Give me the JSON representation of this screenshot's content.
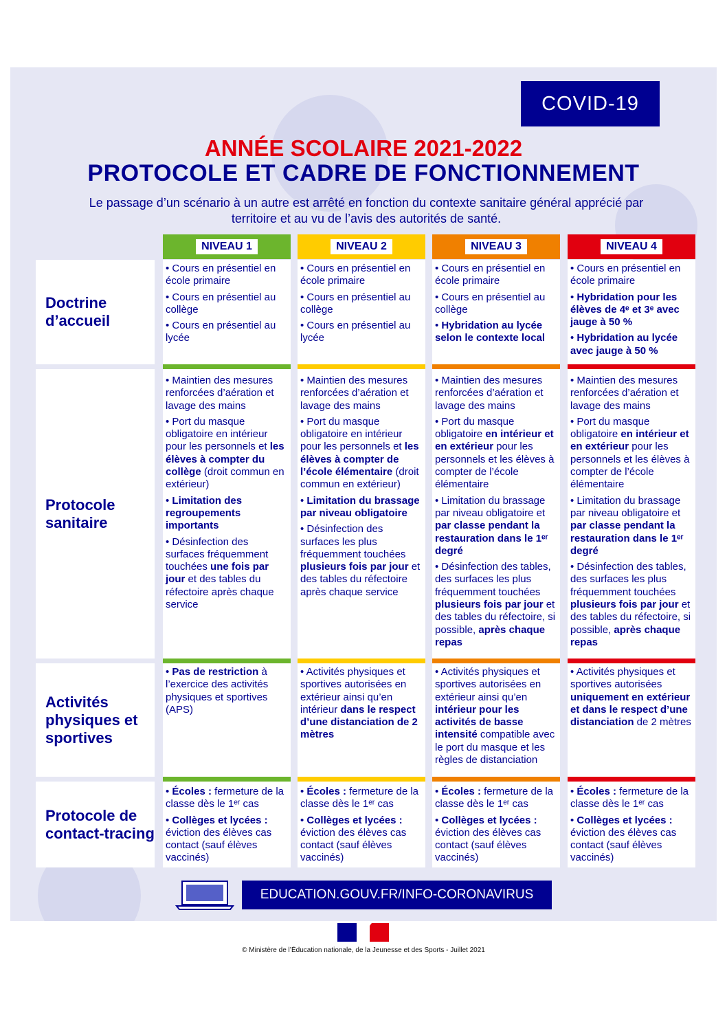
{
  "badge": "COVID-19",
  "title_line1": "ANNÉE SCOLAIRE 2021-2022",
  "title_line2": "PROTOCOLE ET CADRE DE FONCTIONNEMENT",
  "subtitle": "Le passage d’un scénario à un autre est arrêté en fonction du contexte sanitaire général apprécié par territoire et au vu de l’avis des autorités de santé.",
  "colors": {
    "niveau1": "#6cb52d",
    "niveau2": "#ffcc00",
    "niveau3": "#f08000",
    "niveau4": "#e1000f",
    "navy": "#000091",
    "red": "#e1000f"
  },
  "levels": [
    "NIVEAU 1",
    "NIVEAU 2",
    "NIVEAU 3",
    "NIVEAU 4"
  ],
  "rows": [
    {
      "label": "Doctrine d’accueil",
      "cells": [
        [
          [
            [
              "• Cours en présentiel en école primaire",
              0
            ]
          ],
          [
            [
              "• Cours en présentiel au collège",
              0
            ]
          ],
          [
            [
              "• Cours en présentiel au lycée",
              0
            ]
          ]
        ],
        [
          [
            [
              "• Cours en présentiel en école primaire",
              0
            ]
          ],
          [
            [
              "• Cours en présentiel au collège",
              0
            ]
          ],
          [
            [
              "• Cours en présentiel au lycée",
              0
            ]
          ]
        ],
        [
          [
            [
              "• Cours en présentiel en école primaire",
              0
            ]
          ],
          [
            [
              "• Cours en présentiel au collège",
              0
            ]
          ],
          [
            [
              "• ",
              0
            ],
            [
              "Hybridation au lycée selon le contexte local",
              1
            ]
          ]
        ],
        [
          [
            [
              "• Cours en présentiel en école primaire",
              0
            ]
          ],
          [
            [
              "• ",
              0
            ],
            [
              "Hybridation pour les élèves de 4ᵉ et 3ᵉ avec jauge à 50 %",
              1
            ]
          ],
          [
            [
              "• ",
              0
            ],
            [
              "Hybridation au lycée avec jauge à 50 %",
              1
            ]
          ]
        ]
      ]
    },
    {
      "label": "Protocole sanitaire",
      "cells": [
        [
          [
            [
              "• Maintien des mesures renforcées d’aération et lavage des mains",
              0
            ]
          ],
          [
            [
              "• Port du masque obligatoire en intérieur pour les personnels et ",
              0
            ],
            [
              "les élèves à compter du collège",
              1
            ],
            [
              " (droit commun en extérieur)",
              0
            ]
          ],
          [
            [
              "• ",
              0
            ],
            [
              "Limitation des regroupements importants",
              1
            ]
          ],
          [
            [
              "• Désinfection des surfaces fréquemment touchées ",
              0
            ],
            [
              "une fois par jour",
              1
            ],
            [
              " et des tables du réfectoire après chaque service",
              0
            ]
          ]
        ],
        [
          [
            [
              "• Maintien des mesures renforcées d’aération et lavage des mains",
              0
            ]
          ],
          [
            [
              "• Port du masque obligatoire en intérieur pour les personnels et ",
              0
            ],
            [
              "les élèves à compter de l’école élémentaire",
              1
            ],
            [
              " (droit commun en extérieur)",
              0
            ]
          ],
          [
            [
              "• ",
              0
            ],
            [
              "Limitation du brassage par niveau obligatoire",
              1
            ]
          ],
          [
            [
              "• Désinfection des surfaces les plus fréquemment touchées ",
              0
            ],
            [
              "plusieurs fois par jour",
              1
            ],
            [
              " et des tables du réfectoire après chaque service",
              0
            ]
          ]
        ],
        [
          [
            [
              "• Maintien des mesures renforcées d’aération et lavage des mains",
              0
            ]
          ],
          [
            [
              "• Port du masque obligatoire ",
              0
            ],
            [
              "en intérieur et en extérieur",
              1
            ],
            [
              " pour les personnels et les élèves à compter de l’école élémentaire",
              0
            ]
          ],
          [
            [
              "• Limitation du brassage par niveau obligatoire et ",
              0
            ],
            [
              "par classe pendant la restauration dans le 1ᵉʳ degré",
              1
            ]
          ],
          [
            [
              "• Désinfection des tables, des surfaces les plus fréquemment touchées ",
              0
            ],
            [
              "plusieurs fois par jour",
              1
            ],
            [
              " et des tables du réfectoire, si possible, ",
              0
            ],
            [
              "après chaque repas",
              1
            ]
          ]
        ],
        [
          [
            [
              "• Maintien des mesures renforcées d’aération et lavage des mains",
              0
            ]
          ],
          [
            [
              "• Port du masque obligatoire ",
              0
            ],
            [
              "en intérieur et en extérieur",
              1
            ],
            [
              " pour les personnels et les élèves à compter de l’école élémentaire",
              0
            ]
          ],
          [
            [
              "• Limitation du brassage par niveau obligatoire et ",
              0
            ],
            [
              "par classe pendant la restauration dans le 1ᵉʳ degré",
              1
            ]
          ],
          [
            [
              "• Désinfection des tables, des surfaces les plus fréquemment touchées ",
              0
            ],
            [
              "plusieurs fois par jour",
              1
            ],
            [
              " et des tables du réfectoire, si possible, ",
              0
            ],
            [
              "après chaque repas",
              1
            ]
          ]
        ]
      ]
    },
    {
      "label": "Activités physiques et sportives",
      "cells": [
        [
          [
            [
              "• ",
              0
            ],
            [
              "Pas de restriction",
              1
            ],
            [
              " à l’exercice des activités physiques et sportives (APS)",
              0
            ]
          ]
        ],
        [
          [
            [
              "• Activités physiques et sportives autorisées en extérieur ainsi qu’en intérieur ",
              0
            ],
            [
              "dans le respect d’une distanciation de 2 mètres",
              1
            ]
          ]
        ],
        [
          [
            [
              "• Activités physiques et sportives autorisées en extérieur ainsi qu’en ",
              0
            ],
            [
              "intérieur pour les activités de basse intensité",
              1
            ],
            [
              " compatible avec le port du masque et les règles de distanciation",
              0
            ]
          ]
        ],
        [
          [
            [
              "• Activités physiques et sportives autorisées ",
              0
            ],
            [
              "uniquement en extérieur et dans le respect d’une distanciation",
              1
            ],
            [
              " de 2 mètres",
              0
            ]
          ]
        ]
      ]
    },
    {
      "label": "Protocole de contact-tracing",
      "cells": [
        [
          [
            [
              "• ",
              0
            ],
            [
              "Écoles :",
              1
            ],
            [
              " fermeture de la classe dès le 1ᵉʳ cas",
              0
            ]
          ],
          [
            [
              "• ",
              0
            ],
            [
              "Collèges et lycées :",
              1
            ],
            [
              " éviction des élèves cas contact (sauf élèves vaccinés)",
              0
            ]
          ]
        ],
        [
          [
            [
              "• ",
              0
            ],
            [
              "Écoles :",
              1
            ],
            [
              " fermeture de la classe dès le 1ᵉʳ cas",
              0
            ]
          ],
          [
            [
              "• ",
              0
            ],
            [
              "Collèges et lycées :",
              1
            ],
            [
              " éviction des élèves cas contact (sauf élèves vaccinés)",
              0
            ]
          ]
        ],
        [
          [
            [
              "• ",
              0
            ],
            [
              "Écoles :",
              1
            ],
            [
              " fermeture de la classe dès le 1ᵉʳ cas",
              0
            ]
          ],
          [
            [
              "• ",
              0
            ],
            [
              "Collèges et lycées :",
              1
            ],
            [
              " éviction des élèves cas contact (sauf élèves vaccinés)",
              0
            ]
          ]
        ],
        [
          [
            [
              "• ",
              0
            ],
            [
              "Écoles :",
              1
            ],
            [
              " fermeture de la classe dès le 1ᵉʳ cas",
              0
            ]
          ],
          [
            [
              "• ",
              0
            ],
            [
              "Collèges et lycées :",
              1
            ],
            [
              " éviction des élèves cas contact (sauf élèves vaccinés)",
              0
            ]
          ]
        ]
      ]
    }
  ],
  "footer": {
    "url": "EDUCATION.GOUV.FR/INFO-CORONAVIRUS",
    "copyright": "© Ministère de l’Éducation nationale, de la Jeunesse et des Sports - Juillet 2021",
    "laptop_icon": "laptop-icon",
    "logo": "marianne-logo"
  }
}
